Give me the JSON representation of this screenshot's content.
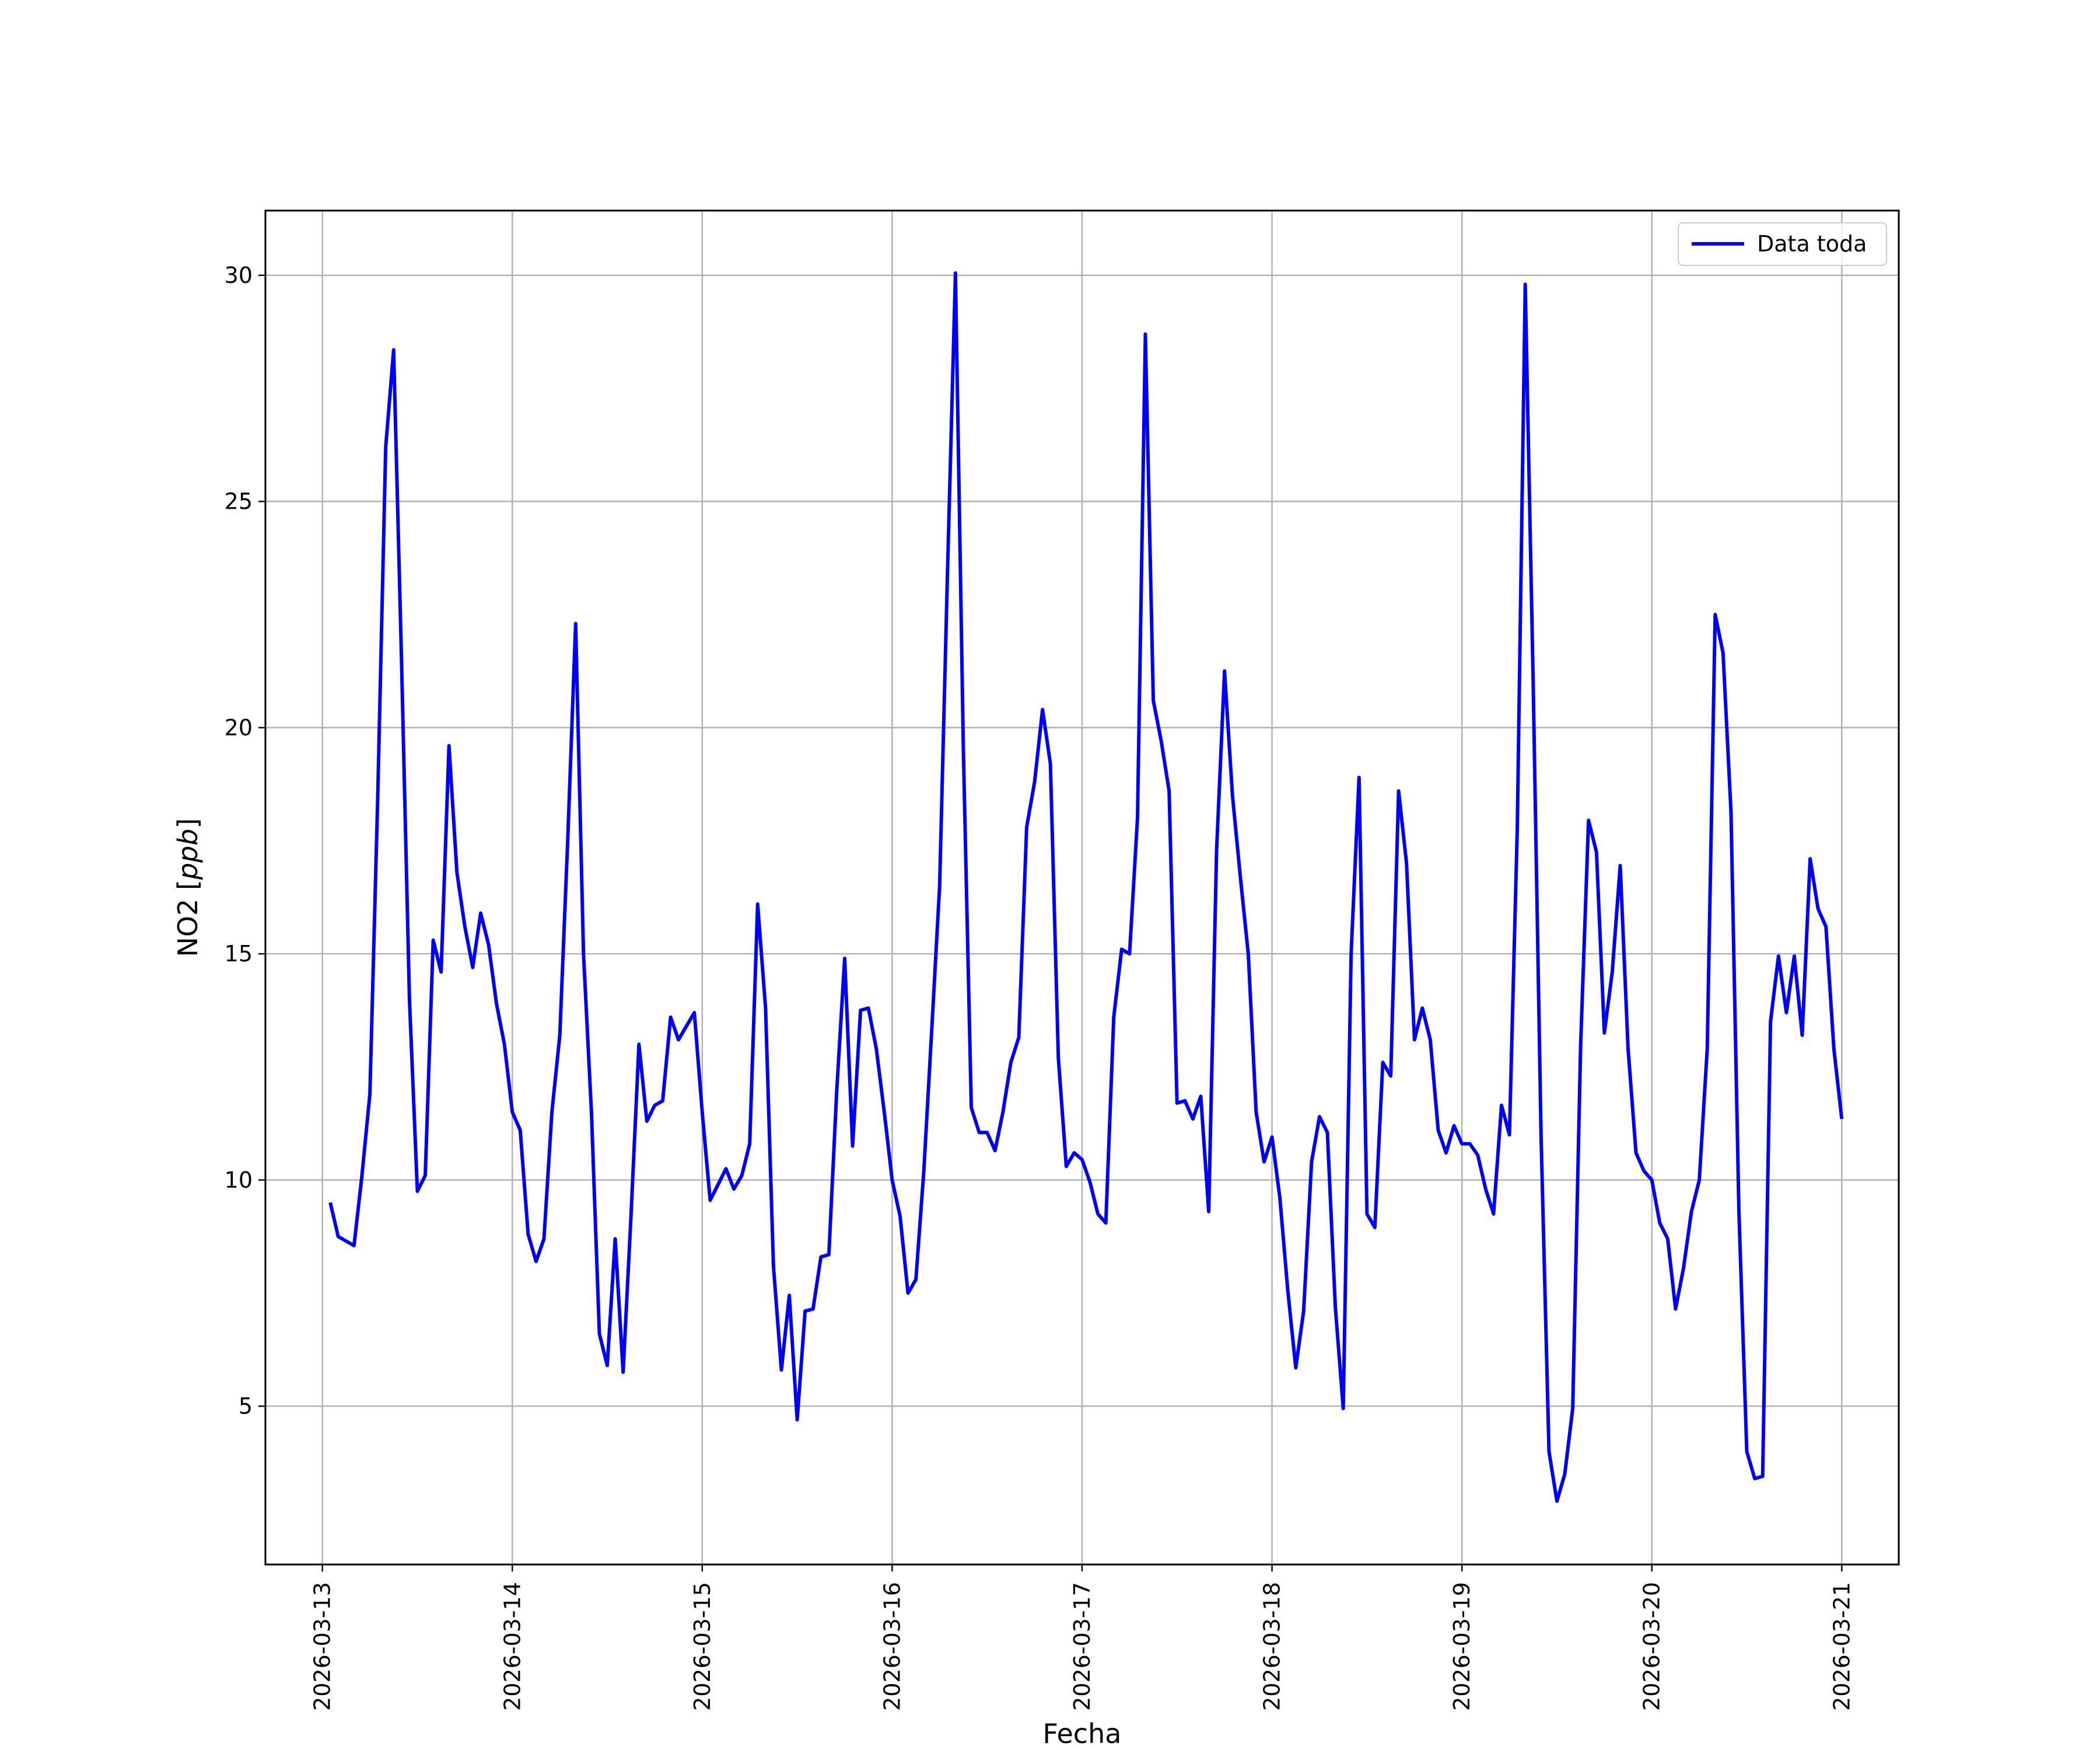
{
  "chart_data": {
    "type": "line",
    "xlabel": "Fecha",
    "ylabel": "NO2 [ppb]",
    "ylabel_main": "NO2 [",
    "ylabel_unit": "ppb",
    "ylabel_close": "]",
    "xlim": [
      "2026-03-12T16:48",
      "2026-03-21T07:12"
    ],
    "ylim": [
      1.5,
      31.43
    ],
    "xticks": [
      "2026-03-13",
      "2026-03-14",
      "2026-03-15",
      "2026-03-16",
      "2026-03-17",
      "2026-03-18",
      "2026-03-19",
      "2026-03-20",
      "2026-03-21"
    ],
    "yticks": [
      5,
      10,
      15,
      20,
      25,
      30
    ],
    "grid": true,
    "legend": {
      "position": "top-right"
    },
    "series": [
      {
        "name": "Data toda",
        "color": "#0000ff",
        "x": [
          "2026-03-13T01:00",
          "2026-03-13T02:00",
          "2026-03-13T04:00",
          "2026-03-13T05:00",
          "2026-03-13T06:00",
          "2026-03-13T07:00",
          "2026-03-13T08:00",
          "2026-03-13T09:00",
          "2026-03-13T10:00",
          "2026-03-13T11:00",
          "2026-03-13T12:00",
          "2026-03-13T13:00",
          "2026-03-13T14:00",
          "2026-03-13T15:00",
          "2026-03-13T16:00",
          "2026-03-13T17:00",
          "2026-03-13T18:00",
          "2026-03-13T19:00",
          "2026-03-13T20:00",
          "2026-03-13T21:00",
          "2026-03-13T22:00",
          "2026-03-13T23:00",
          "2026-03-14T00:00",
          "2026-03-14T01:00",
          "2026-03-14T02:00",
          "2026-03-14T03:00",
          "2026-03-14T04:00",
          "2026-03-14T05:00",
          "2026-03-14T06:00",
          "2026-03-14T07:00",
          "2026-03-14T08:00",
          "2026-03-14T09:00",
          "2026-03-14T10:00",
          "2026-03-14T11:00",
          "2026-03-14T12:00",
          "2026-03-14T13:00",
          "2026-03-14T14:00",
          "2026-03-14T15:00",
          "2026-03-14T16:00",
          "2026-03-14T17:00",
          "2026-03-14T18:00",
          "2026-03-14T19:00",
          "2026-03-14T20:00",
          "2026-03-14T21:00",
          "2026-03-14T22:00",
          "2026-03-14T23:00",
          "2026-03-15T00:00",
          "2026-03-15T01:00",
          "2026-03-15T02:00",
          "2026-03-15T03:00",
          "2026-03-15T04:00",
          "2026-03-15T05:00",
          "2026-03-15T06:00",
          "2026-03-15T07:00",
          "2026-03-15T08:00",
          "2026-03-15T09:00",
          "2026-03-15T10:00",
          "2026-03-15T11:00",
          "2026-03-15T12:00",
          "2026-03-15T13:00",
          "2026-03-15T14:00",
          "2026-03-15T15:00",
          "2026-03-15T16:00",
          "2026-03-15T17:00",
          "2026-03-15T18:00",
          "2026-03-15T19:00",
          "2026-03-15T20:00",
          "2026-03-15T21:00",
          "2026-03-15T22:00",
          "2026-03-15T23:00",
          "2026-03-16T00:00",
          "2026-03-16T01:00",
          "2026-03-16T02:00",
          "2026-03-16T03:00",
          "2026-03-16T04:00",
          "2026-03-16T05:00",
          "2026-03-16T06:00",
          "2026-03-16T07:00",
          "2026-03-16T08:00",
          "2026-03-16T09:00",
          "2026-03-16T10:00",
          "2026-03-16T11:00",
          "2026-03-16T12:00",
          "2026-03-16T13:00",
          "2026-03-16T14:00",
          "2026-03-16T15:00",
          "2026-03-16T16:00",
          "2026-03-16T17:00",
          "2026-03-16T18:00",
          "2026-03-16T19:00",
          "2026-03-16T20:00",
          "2026-03-16T21:00",
          "2026-03-16T22:00",
          "2026-03-16T23:00",
          "2026-03-17T00:00",
          "2026-03-17T01:00",
          "2026-03-17T02:00",
          "2026-03-17T03:00",
          "2026-03-17T04:00",
          "2026-03-17T05:00",
          "2026-03-17T06:00",
          "2026-03-17T07:00",
          "2026-03-17T08:00",
          "2026-03-17T09:00",
          "2026-03-17T10:00",
          "2026-03-17T11:00",
          "2026-03-17T12:00",
          "2026-03-17T13:00",
          "2026-03-17T14:00",
          "2026-03-17T15:00",
          "2026-03-17T16:00",
          "2026-03-17T17:00",
          "2026-03-17T18:00",
          "2026-03-17T19:00",
          "2026-03-17T20:00",
          "2026-03-17T21:00",
          "2026-03-17T22:00",
          "2026-03-17T23:00",
          "2026-03-18T00:00",
          "2026-03-18T01:00",
          "2026-03-18T02:00",
          "2026-03-18T03:00",
          "2026-03-18T04:00",
          "2026-03-18T05:00",
          "2026-03-18T06:00",
          "2026-03-18T07:00",
          "2026-03-18T08:00",
          "2026-03-18T09:00",
          "2026-03-18T10:00",
          "2026-03-18T11:00",
          "2026-03-18T12:00",
          "2026-03-18T13:00",
          "2026-03-18T14:00",
          "2026-03-18T15:00",
          "2026-03-18T16:00",
          "2026-03-18T17:00",
          "2026-03-18T18:00",
          "2026-03-18T19:00",
          "2026-03-18T20:00",
          "2026-03-18T21:00",
          "2026-03-18T22:00",
          "2026-03-18T23:00",
          "2026-03-19T00:00",
          "2026-03-19T01:00",
          "2026-03-19T02:00",
          "2026-03-19T03:00",
          "2026-03-19T04:00",
          "2026-03-19T05:00",
          "2026-03-19T06:00",
          "2026-03-19T07:00",
          "2026-03-19T08:00",
          "2026-03-19T09:00",
          "2026-03-19T10:00",
          "2026-03-19T11:00",
          "2026-03-19T12:00",
          "2026-03-19T13:00",
          "2026-03-19T14:00",
          "2026-03-19T15:00",
          "2026-03-19T16:00",
          "2026-03-19T17:00",
          "2026-03-19T18:00",
          "2026-03-19T19:00",
          "2026-03-19T20:00",
          "2026-03-19T21:00",
          "2026-03-19T22:00",
          "2026-03-19T23:00",
          "2026-03-20T00:00",
          "2026-03-20T01:00",
          "2026-03-20T02:00",
          "2026-03-20T03:00",
          "2026-03-20T04:00",
          "2026-03-20T05:00",
          "2026-03-20T06:00",
          "2026-03-20T07:00",
          "2026-03-20T08:00",
          "2026-03-20T09:00",
          "2026-03-20T10:00",
          "2026-03-20T11:00",
          "2026-03-20T12:00",
          "2026-03-20T13:00",
          "2026-03-20T14:00",
          "2026-03-20T15:00",
          "2026-03-20T16:00",
          "2026-03-20T17:00",
          "2026-03-20T18:00",
          "2026-03-20T19:00",
          "2026-03-20T20:00",
          "2026-03-20T21:00",
          "2026-03-20T22:00",
          "2026-03-20T23:00",
          "2026-03-21T00:00"
        ],
        "y": [
          9.5,
          8.75,
          8.55,
          10.1,
          11.9,
          18.5,
          26.2,
          28.35,
          21.5,
          14.0,
          9.75,
          10.1,
          15.3,
          14.6,
          19.6,
          16.8,
          15.6,
          14.7,
          15.9,
          15.2,
          13.9,
          13.0,
          11.5,
          11.1,
          8.8,
          8.2,
          8.7,
          11.5,
          13.2,
          17.5,
          22.3,
          15.0,
          11.5,
          6.6,
          5.9,
          8.7,
          5.75,
          9.2,
          13.0,
          11.3,
          11.65,
          11.75,
          13.6,
          13.1,
          13.4,
          13.7,
          11.5,
          9.55,
          9.9,
          10.25,
          9.8,
          10.1,
          10.8,
          16.1,
          13.8,
          8.1,
          5.8,
          7.45,
          4.7,
          7.1,
          7.15,
          8.3,
          8.35,
          12.0,
          14.9,
          10.75,
          13.75,
          13.8,
          12.9,
          11.5,
          10.0,
          9.2,
          7.5,
          7.8,
          10.2,
          13.3,
          16.5,
          23.5,
          30.05,
          19.5,
          11.6,
          11.05,
          11.05,
          10.65,
          11.5,
          12.6,
          13.15,
          17.8,
          18.8,
          20.4,
          19.2,
          12.7,
          10.3,
          10.6,
          10.45,
          9.95,
          9.25,
          9.05,
          13.6,
          15.1,
          15.0,
          18.0,
          28.7,
          20.6,
          19.7,
          18.6,
          11.7,
          11.75,
          11.35,
          11.85,
          9.3,
          17.3,
          21.25,
          18.5,
          16.7,
          15.0,
          11.5,
          10.4,
          10.95,
          9.6,
          7.55,
          5.85,
          7.1,
          10.4,
          11.4,
          11.05,
          7.2,
          4.95,
          15.0,
          18.9,
          9.25,
          8.95,
          12.6,
          12.3,
          18.6,
          17.0,
          13.1,
          13.8,
          13.1,
          11.1,
          10.6,
          11.2,
          10.8,
          10.8,
          10.55,
          9.8,
          9.25,
          11.65,
          11.0,
          17.8,
          29.8,
          21.0,
          11.0,
          4.0,
          2.9,
          3.5,
          4.95,
          13.0,
          17.95,
          17.25,
          13.25,
          14.6,
          16.95,
          12.9,
          10.6,
          10.2,
          10.0,
          9.05,
          8.7,
          7.15,
          8.05,
          9.3,
          10.0,
          12.9,
          22.5,
          21.65,
          18.15,
          9.3,
          4.0,
          3.4,
          3.45,
          13.5,
          14.95,
          13.7,
          14.95,
          13.2,
          17.1,
          16.0,
          15.6,
          12.9,
          11.35
        ]
      }
    ]
  }
}
